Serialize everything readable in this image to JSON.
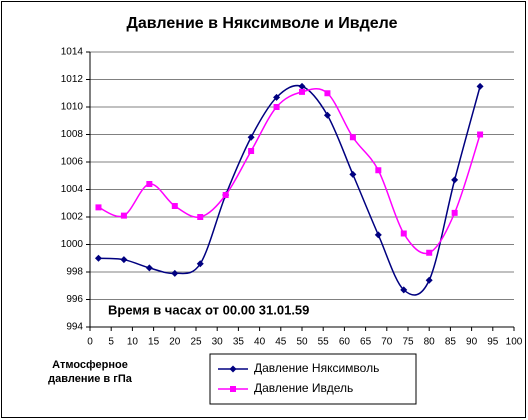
{
  "chart_data": {
    "type": "line",
    "title": "Давление в Няксимволе и Ивделе",
    "annotation": "Время в часах от 00.00 31.01.59",
    "y_label": "Атмосферное давление в гПа",
    "x": [
      2,
      8,
      14,
      20,
      26,
      32,
      38,
      44,
      50,
      56,
      62,
      68,
      74,
      80,
      86,
      92
    ],
    "series": [
      {
        "name": "Давление Няксимволь",
        "color": "#000080",
        "marker": "diamond",
        "values": [
          999,
          998.9,
          998.3,
          997.9,
          998.6,
          1003.6,
          1007.8,
          1010.7,
          1011.5,
          1009.4,
          1005.1,
          1000.7,
          996.7,
          997.4,
          1004.7,
          1011.5
        ]
      },
      {
        "name": "Давление Ивдель",
        "color": "#ff00ff",
        "marker": "square",
        "values": [
          1002.7,
          1002.1,
          1004.4,
          1002.8,
          1002.0,
          1003.6,
          1006.8,
          1010.0,
          1011.1,
          1011.0,
          1007.8,
          1005.4,
          1000.8,
          999.4,
          1002.3,
          1008.0
        ]
      }
    ],
    "smooth": true,
    "xlim": [
      0,
      100
    ],
    "xticks": [
      0,
      5,
      10,
      15,
      20,
      25,
      30,
      35,
      40,
      45,
      50,
      55,
      60,
      65,
      70,
      75,
      80,
      85,
      90,
      95,
      100
    ],
    "ylim": [
      994,
      1014
    ],
    "yticks": [
      994,
      996,
      998,
      1000,
      1002,
      1004,
      1006,
      1008,
      1010,
      1012,
      1014
    ],
    "grid": true,
    "legend": "bottom"
  }
}
